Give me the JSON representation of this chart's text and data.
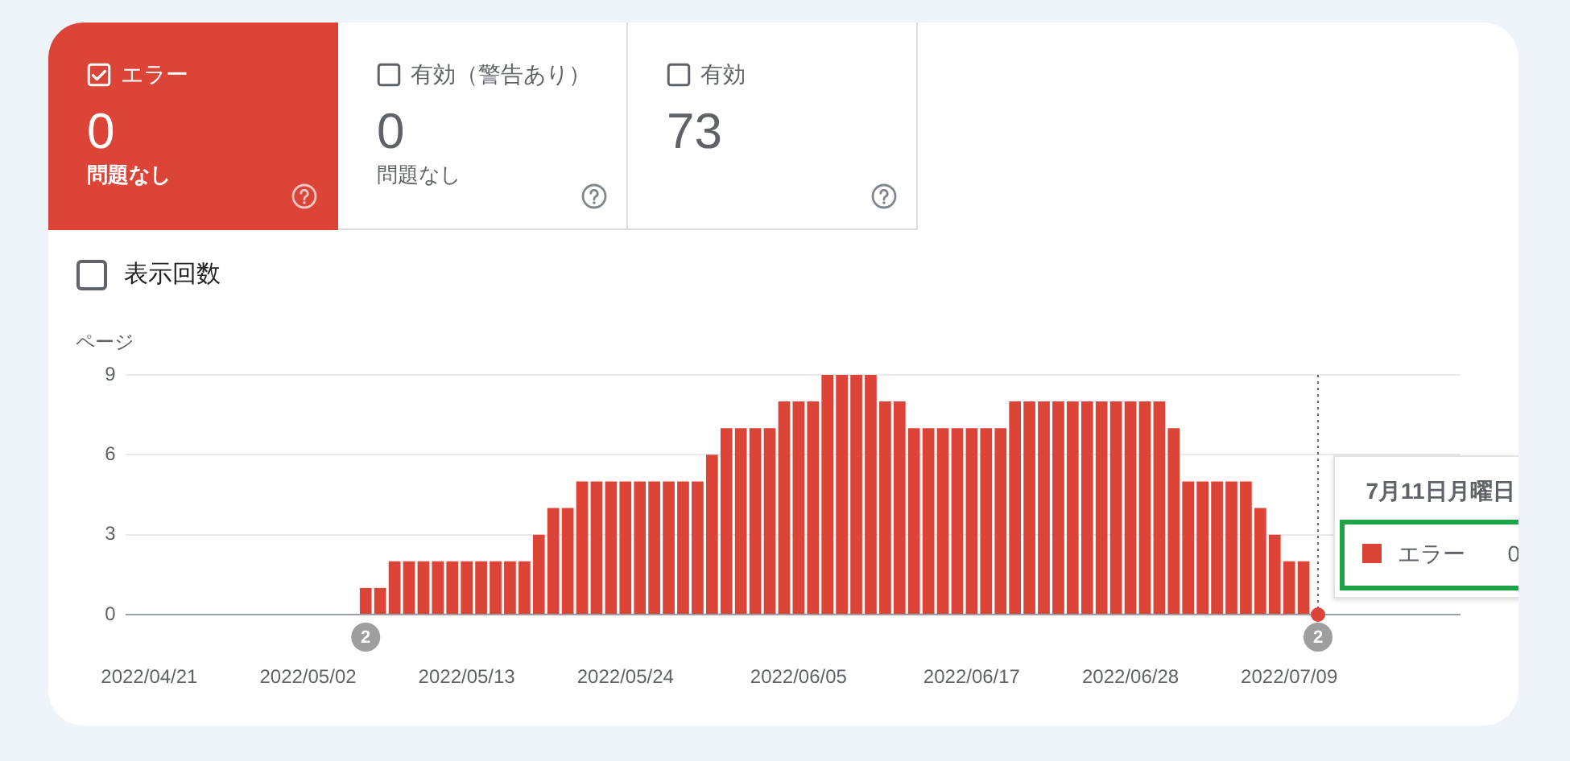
{
  "chart_data": [
    {
      "type": "other",
      "categories": [
        "エラー",
        "有効（警告あり）",
        "有効"
      ],
      "values": [
        0,
        0,
        73
      ],
      "colors": [
        "#db4437",
        null,
        null
      ],
      "data_labels": true,
      "annotations": [
        "問題なし",
        "問題なし"
      ]
    },
    {
      "type": "bar",
      "ylabel": "ページ",
      "legend": "right",
      "legend_title": "7月11日月曜日",
      "grid": "y",
      "series": [
        {
          "name": "エラー",
          "color": "#db4437",
          "x": [
            "2022-05-06",
            "2022-05-07",
            "2022-05-08",
            "2022-05-09",
            "2022-05-10",
            "2022-05-11",
            "2022-05-12",
            "2022-05-13",
            "2022-05-14",
            "2022-05-15",
            "2022-05-16",
            "2022-05-17",
            "2022-05-18",
            "2022-05-19",
            "2022-05-20",
            "2022-05-21",
            "2022-05-22",
            "2022-05-23",
            "2022-05-24",
            "2022-05-25",
            "2022-05-26",
            "2022-05-27",
            "2022-05-28",
            "2022-05-29",
            "2022-05-30",
            "2022-05-31",
            "2022-06-01",
            "2022-06-02",
            "2022-06-03",
            "2022-06-04",
            "2022-06-05",
            "2022-06-06",
            "2022-06-07",
            "2022-06-08",
            "2022-06-09",
            "2022-06-10",
            "2022-06-11",
            "2022-06-12",
            "2022-06-13",
            "2022-06-14",
            "2022-06-15",
            "2022-06-16",
            "2022-06-17",
            "2022-06-18",
            "2022-06-19",
            "2022-06-20",
            "2022-06-21",
            "2022-06-22",
            "2022-06-23",
            "2022-06-24",
            "2022-06-25",
            "2022-06-26",
            "2022-06-27",
            "2022-06-28",
            "2022-06-29",
            "2022-06-30",
            "2022-07-01",
            "2022-07-02",
            "2022-07-03",
            "2022-07-04",
            "2022-07-05",
            "2022-07-06",
            "2022-07-07",
            "2022-07-08",
            "2022-07-09",
            "2022-07-10"
          ],
          "values": [
            1,
            1,
            2,
            2,
            2,
            2,
            2,
            2,
            2,
            2,
            2,
            2,
            3,
            4,
            4,
            5,
            5,
            5,
            5,
            5,
            5,
            5,
            5,
            5,
            6,
            7,
            7,
            7,
            7,
            8,
            8,
            8,
            9,
            9,
            9,
            9,
            8,
            8,
            7,
            7,
            7,
            7,
            7,
            7,
            7,
            8,
            8,
            8,
            8,
            8,
            8,
            8,
            8,
            8,
            8,
            8,
            7,
            5,
            5,
            5,
            5,
            5,
            4,
            3,
            2,
            2
          ]
        },
        {
          "type": "scatter",
          "color": "#db4437",
          "marker": "circle",
          "x": [
            "2022-07-11"
          ],
          "values": [
            0
          ]
        }
      ],
      "xlim": [
        "2022-04-19T08:00",
        "2022-07-20T21:00"
      ],
      "xticks": [
        {
          "value": "2022-04-21",
          "label": "2022/04/21"
        },
        {
          "value": "2022-05-02",
          "label": "2022/05/02"
        },
        {
          "value": "2022-05-13",
          "label": "2022/05/13"
        },
        {
          "value": "2022-05-24",
          "label": "2022/05/24"
        },
        {
          "value": "2022-06-05",
          "label": "2022/06/05"
        },
        {
          "value": "2022-06-17",
          "label": "2022/06/17"
        },
        {
          "value": "2022-06-28",
          "label": "2022/06/28"
        },
        {
          "value": "2022-07-09",
          "label": "2022/07/09"
        }
      ],
      "ylim": [
        0,
        9
      ],
      "yticks": [
        0,
        3,
        6,
        9
      ],
      "ref_lines": [
        {
          "axis": "x",
          "value": "2022-07-11",
          "color": "#5f6368",
          "line_style": "dotted"
        }
      ],
      "annotations": [
        "表示回数",
        {
          "text": "2",
          "x": "2022-05-06",
          "y": 0
        },
        {
          "text": "2",
          "x": "2022-07-11",
          "y": 0
        },
        "0"
      ]
    }
  ]
}
